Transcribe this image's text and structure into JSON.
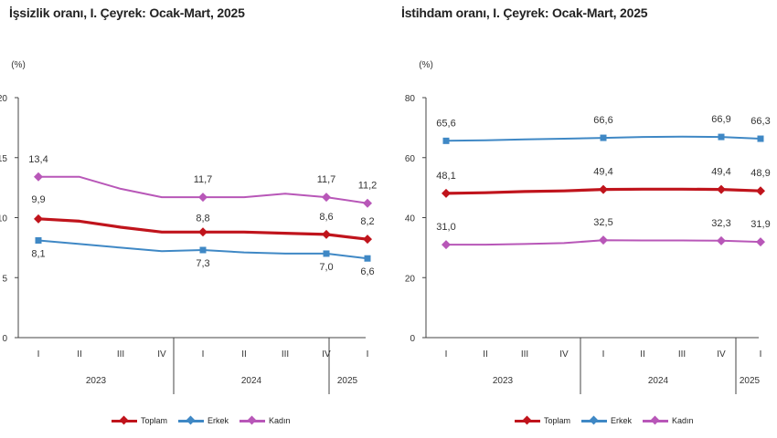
{
  "chart_data": [
    {
      "type": "line",
      "title": "İşsizlik oranı, I. Çeyrek: Ocak-Mart, 2025",
      "ylabel": "(%)",
      "ylim": [
        0,
        20
      ],
      "yticks": [
        "0",
        "5",
        "10",
        "15",
        "20"
      ],
      "quarters": [
        "I",
        "II",
        "III",
        "IV",
        "I",
        "II",
        "III",
        "IV",
        "I"
      ],
      "years": [
        "2023",
        "2024",
        "2025"
      ],
      "series": [
        {
          "name": "Toplam",
          "color": "#c0141c",
          "values": [
            9.9,
            9.7,
            9.2,
            8.8,
            8.8,
            8.8,
            8.7,
            8.6,
            8.2
          ],
          "labels": [
            "9,9",
            "",
            "",
            "",
            "8,8",
            "",
            "",
            "8,6",
            "8,2"
          ]
        },
        {
          "name": "Erkek",
          "color": "#3f88c5",
          "values": [
            8.1,
            7.8,
            7.5,
            7.2,
            7.3,
            7.1,
            7.0,
            7.0,
            6.6
          ],
          "labels": [
            "8,1",
            "",
            "",
            "",
            "7,3",
            "",
            "",
            "7,0",
            "6,6"
          ]
        },
        {
          "name": "Kadın",
          "color": "#b857b8",
          "values": [
            13.4,
            13.4,
            12.4,
            11.7,
            11.7,
            11.7,
            12.0,
            11.7,
            11.2
          ],
          "labels": [
            "13,4",
            "",
            "",
            "",
            "11,7",
            "",
            "",
            "11,7",
            "11,2"
          ]
        }
      ]
    },
    {
      "type": "line",
      "title": "İstihdam oranı, I. Çeyrek: Ocak-Mart, 2025",
      "ylabel": "(%)",
      "ylim": [
        0,
        80
      ],
      "yticks": [
        "0",
        "20",
        "40",
        "60",
        "80"
      ],
      "quarters": [
        "I",
        "II",
        "III",
        "IV",
        "I",
        "II",
        "III",
        "IV",
        "I"
      ],
      "years": [
        "2023",
        "2024",
        "2025"
      ],
      "series": [
        {
          "name": "Toplam",
          "color": "#c0141c",
          "values": [
            48.1,
            48.3,
            48.7,
            48.9,
            49.4,
            49.5,
            49.5,
            49.4,
            48.9
          ],
          "labels": [
            "48,1",
            "",
            "",
            "",
            "49,4",
            "",
            "",
            "49,4",
            "48,9"
          ]
        },
        {
          "name": "Erkek",
          "color": "#3f88c5",
          "values": [
            65.6,
            65.8,
            66.1,
            66.3,
            66.6,
            66.9,
            67.0,
            66.9,
            66.3
          ],
          "labels": [
            "65,6",
            "",
            "",
            "",
            "66,6",
            "",
            "",
            "66,9",
            "66,3"
          ]
        },
        {
          "name": "Kadın",
          "color": "#b857b8",
          "values": [
            31.0,
            31.0,
            31.2,
            31.5,
            32.5,
            32.4,
            32.4,
            32.3,
            31.9
          ],
          "labels": [
            "31,0",
            "",
            "",
            "",
            "32,5",
            "",
            "",
            "32,3",
            "31,9"
          ]
        }
      ]
    }
  ]
}
